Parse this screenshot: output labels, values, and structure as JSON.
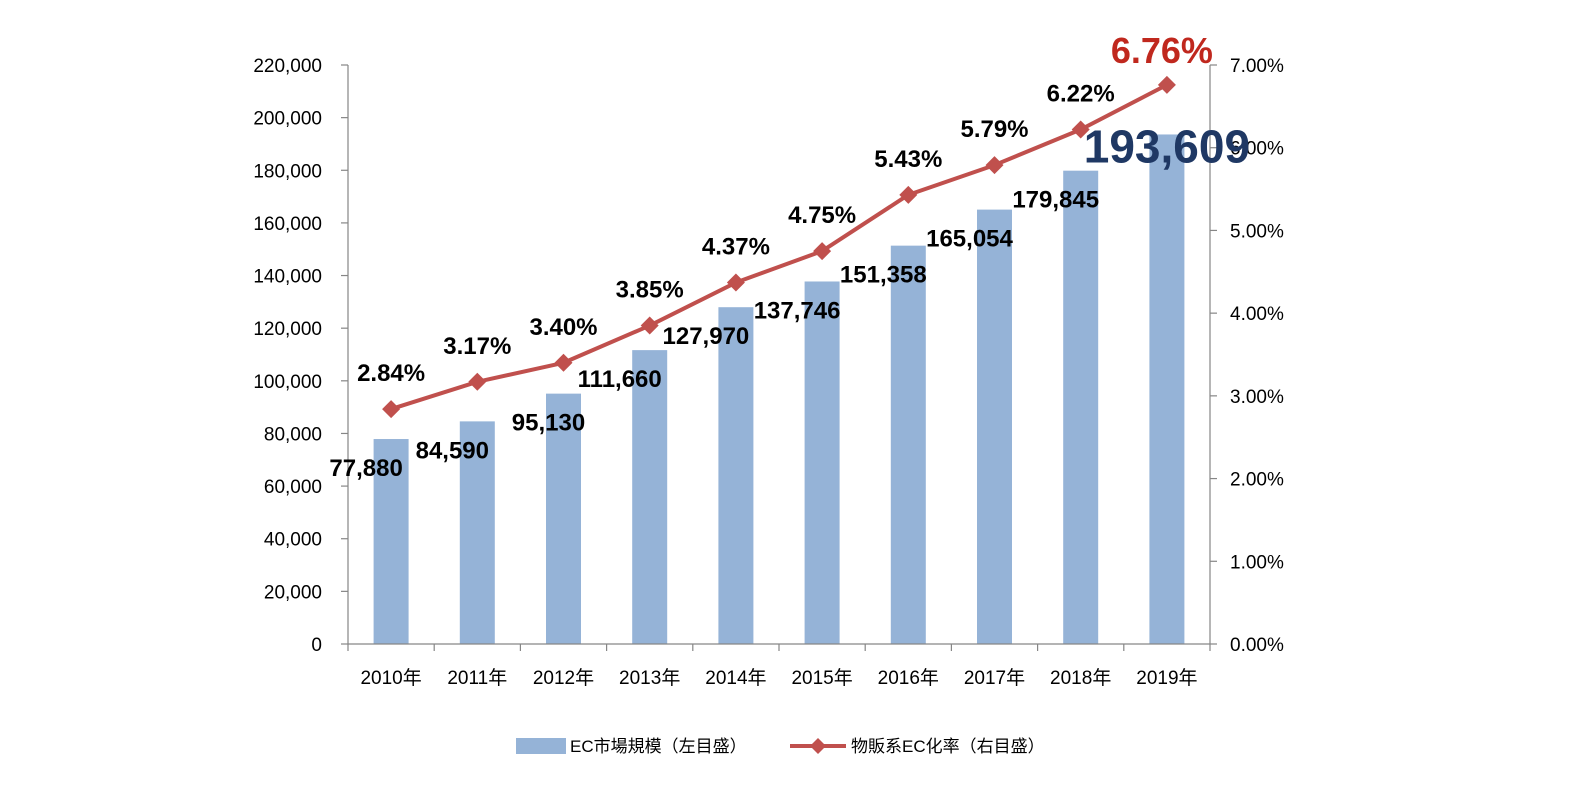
{
  "chart_data": {
    "type": "bar",
    "categories": [
      "2010年",
      "2011年",
      "2012年",
      "2013年",
      "2014年",
      "2015年",
      "2016年",
      "2017年",
      "2018年",
      "2019年"
    ],
    "series": [
      {
        "name": "EC市場規模（左目盛）",
        "type": "bar",
        "axis": "left",
        "color": "#95b3d7",
        "values": [
          77880,
          84590,
          95130,
          111660,
          127970,
          137746,
          151358,
          165054,
          179845,
          193609
        ],
        "labels": [
          "77,880",
          "84,590",
          "95,130",
          "111,660",
          "127,970",
          "137,746",
          "151,358",
          "165,054",
          "179,845",
          "193,609"
        ]
      },
      {
        "name": "物販系EC化率（右目盛）",
        "type": "line",
        "axis": "right",
        "color": "#c0504d",
        "values": [
          2.84,
          3.17,
          3.4,
          3.85,
          4.37,
          4.75,
          5.43,
          5.79,
          6.22,
          6.76
        ],
        "labels": [
          "2.84%",
          "3.17%",
          "3.40%",
          "3.85%",
          "4.37%",
          "4.75%",
          "5.43%",
          "5.79%",
          "6.22%",
          "6.76%"
        ]
      }
    ],
    "y_left": {
      "ylim": [
        0,
        220000
      ],
      "ticks": [
        0,
        20000,
        40000,
        60000,
        80000,
        100000,
        120000,
        140000,
        160000,
        180000,
        200000,
        220000
      ],
      "tick_labels": [
        "0",
        "20,000",
        "40,000",
        "60,000",
        "80,000",
        "100,000",
        "120,000",
        "140,000",
        "160,000",
        "180,000",
        "200,000",
        "220,000"
      ]
    },
    "y_right": {
      "ylim": [
        0,
        7
      ],
      "ticks": [
        0,
        1,
        2,
        3,
        4,
        5,
        6,
        7
      ],
      "tick_labels": [
        "0.00%",
        "1.00%",
        "2.00%",
        "3.00%",
        "4.00%",
        "5.00%",
        "6.00%",
        "7.00%"
      ]
    },
    "highlight": {
      "bar_label_color": "#1f3864",
      "line_label_color": "#c0281e"
    },
    "grid": false,
    "legend": "bottom"
  }
}
